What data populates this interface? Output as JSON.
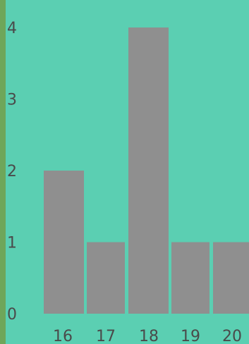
{
  "chart_data": {
    "type": "bar",
    "categories": [
      "16",
      "17",
      "18",
      "19",
      "20"
    ],
    "values": [
      2,
      1,
      4,
      1,
      1
    ],
    "ylim": [
      0,
      4
    ],
    "y_ticks": [
      "0",
      "1",
      "2",
      "3",
      "4"
    ],
    "title": "",
    "xlabel": "",
    "ylabel": "",
    "grid": false,
    "legend": "none",
    "colors": {
      "background": "#5bcfb2",
      "bar": "#8f8f8f",
      "left_edge": "#6ea65a",
      "text": "#4a4a4a"
    }
  }
}
